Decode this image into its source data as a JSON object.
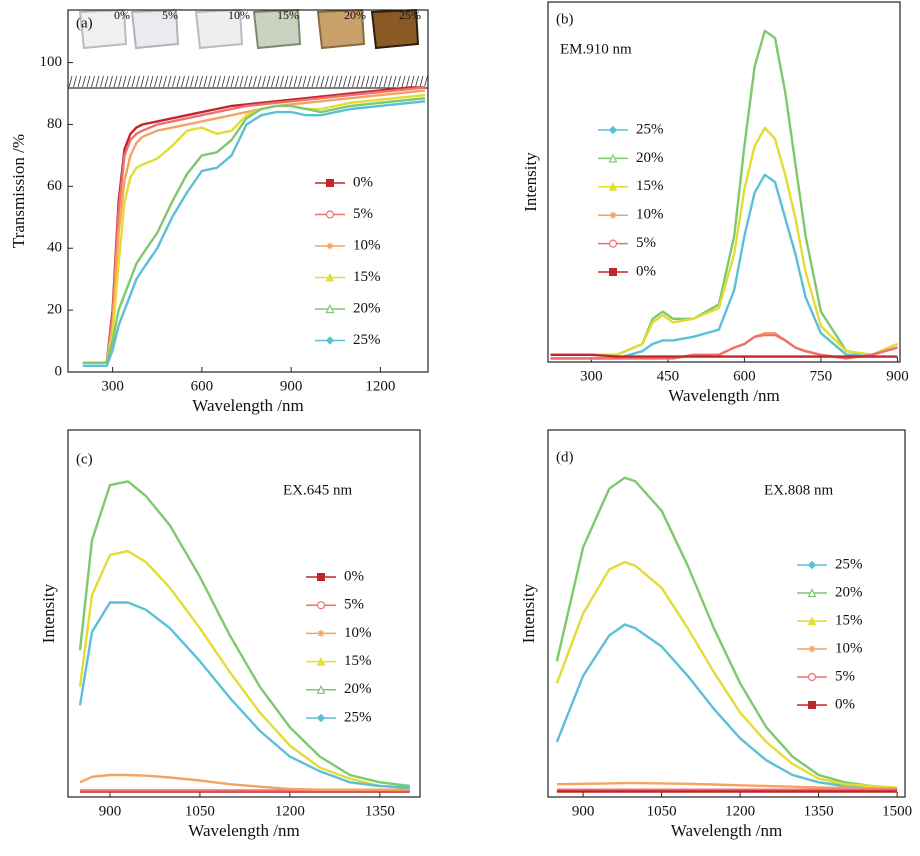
{
  "chart_data": [
    {
      "type": "line",
      "panel_label": "(a)",
      "xlabel": "Wavelength /nm",
      "ylabel": "Transmission /%",
      "xlim": [
        150,
        1360
      ],
      "ylim": [
        0,
        117
      ],
      "xticks": [
        300,
        600,
        900,
        1200
      ],
      "yticks": [
        0,
        20,
        40,
        60,
        80,
        100
      ],
      "inset_labels": [
        {
          "text": "0%",
          "color": "#a8a8a8"
        },
        {
          "text": "5%",
          "color": "#d33a3a"
        },
        {
          "text": "10%",
          "color": "#f07a3a"
        },
        {
          "text": "15%",
          "color": "#e0d23a"
        },
        {
          "text": "20%",
          "color": "#6cbd4a"
        },
        {
          "text": "25%",
          "color": "#55c0d0"
        }
      ],
      "x": [
        200,
        280,
        300,
        320,
        340,
        360,
        380,
        400,
        450,
        500,
        550,
        600,
        650,
        700,
        750,
        800,
        850,
        900,
        950,
        1000,
        1050,
        1100,
        1200,
        1300,
        1350
      ],
      "series": [
        {
          "name": "0%",
          "color": "#c0272d",
          "marker": "square",
          "values": [
            3,
            3,
            20,
            55,
            72,
            77,
            79,
            80,
            81,
            82,
            83,
            84,
            85,
            86,
            86.5,
            87,
            87.5,
            88,
            88.5,
            89,
            89.5,
            90,
            91,
            92,
            92
          ]
        },
        {
          "name": "5%",
          "color": "#ee7070",
          "marker": "circle",
          "values": [
            3,
            3,
            18,
            52,
            70,
            75,
            77,
            78,
            80,
            81,
            82,
            83,
            84,
            85,
            86,
            86.5,
            87,
            87.5,
            88,
            88.5,
            89,
            89.5,
            90.5,
            91.5,
            92
          ]
        },
        {
          "name": "10%",
          "color": "#f4a460",
          "marker": "star",
          "values": [
            3,
            3,
            15,
            45,
            62,
            70,
            74,
            76,
            78,
            79,
            80,
            81,
            82,
            83,
            84,
            85,
            86,
            86.5,
            87,
            87.5,
            88,
            88.5,
            89.5,
            90.5,
            91
          ]
        },
        {
          "name": "15%",
          "color": "#e3dc34",
          "marker": "triangle",
          "values": [
            3,
            3,
            12,
            35,
            55,
            63,
            66,
            67,
            69,
            73,
            78,
            79,
            77,
            78,
            83,
            85,
            86,
            86,
            85,
            85,
            86,
            87,
            88,
            89,
            89.5
          ]
        },
        {
          "name": "20%",
          "color": "#7ec86e",
          "marker": "open-triangle",
          "values": [
            3,
            3,
            10,
            20,
            25,
            30,
            35,
            38,
            45,
            55,
            64,
            70,
            71,
            75,
            82,
            85,
            86,
            86,
            85,
            84,
            85,
            86,
            87,
            88,
            88.5
          ]
        },
        {
          "name": "25%",
          "color": "#5bc0d6",
          "marker": "diamond",
          "values": [
            2,
            2,
            7,
            15,
            20,
            25,
            30,
            33,
            40,
            50,
            58,
            65,
            66,
            70,
            80,
            83,
            84,
            84,
            83,
            83,
            84,
            85,
            86,
            87,
            87.5
          ]
        }
      ]
    },
    {
      "type": "line",
      "panel_label": "(b)",
      "annotation": "EM.910 nm",
      "xlabel": "Wavelength /nm",
      "ylabel": "Intensity",
      "xlim": [
        215,
        905
      ],
      "ylim": [
        0,
        100
      ],
      "xticks": [
        300,
        450,
        600,
        750,
        900
      ],
      "x": [
        220,
        300,
        350,
        400,
        420,
        440,
        460,
        500,
        550,
        580,
        600,
        620,
        640,
        660,
        680,
        700,
        720,
        750,
        800,
        850,
        900
      ],
      "series": [
        {
          "name": "25%",
          "color": "#5bc0d6",
          "marker": "diamond",
          "values": [
            1,
            1,
            1,
            3,
            5,
            6,
            6,
            7,
            9,
            20,
            35,
            47,
            52,
            50,
            40,
            30,
            18,
            8,
            2,
            2,
            4
          ]
        },
        {
          "name": "20%",
          "color": "#7ec86e",
          "marker": "open-triangle",
          "values": [
            2,
            2,
            2,
            5,
            12,
            14,
            12,
            12,
            16,
            35,
            60,
            82,
            92,
            90,
            75,
            55,
            35,
            14,
            3,
            2,
            5
          ]
        },
        {
          "name": "15%",
          "color": "#e3dc34",
          "marker": "triangle",
          "values": [
            2,
            2,
            2,
            5,
            11,
            13,
            11,
            12,
            15,
            30,
            48,
            60,
            65,
            62,
            52,
            40,
            25,
            10,
            3,
            2,
            5
          ]
        },
        {
          "name": "10%",
          "color": "#f4a460",
          "marker": "star",
          "values": [
            1,
            1,
            1,
            1,
            1,
            1,
            1,
            2,
            2,
            4,
            5,
            7,
            8,
            8,
            6,
            4,
            3,
            2,
            1,
            2,
            4
          ]
        },
        {
          "name": "5%",
          "color": "#ee7070",
          "marker": "circle",
          "values": [
            1,
            1,
            1,
            1,
            1,
            1,
            1,
            2,
            2,
            4,
            5,
            7,
            7.5,
            7.5,
            6,
            4,
            3,
            2,
            1,
            2,
            4
          ]
        },
        {
          "name": "0%",
          "color": "#c0272d",
          "marker": "square",
          "values": [
            2,
            2,
            1.5,
            1.5,
            1.5,
            1.5,
            1.5,
            1.5,
            1.5,
            1.5,
            1.5,
            1.5,
            1.5,
            1.5,
            1.5,
            1.5,
            1.5,
            1.5,
            1.5,
            1.5,
            1.5
          ]
        }
      ]
    },
    {
      "type": "line",
      "panel_label": "(c)",
      "annotation": "EX.645 nm",
      "xlabel": "Wavelength /nm",
      "ylabel": "Intensity",
      "xlim": [
        830,
        1417
      ],
      "ylim": [
        0,
        100
      ],
      "xticks": [
        900,
        1050,
        1200,
        1350
      ],
      "x": [
        850,
        870,
        900,
        930,
        960,
        1000,
        1050,
        1100,
        1150,
        1200,
        1250,
        1300,
        1350,
        1400
      ],
      "series": [
        {
          "name": "0%",
          "color": "#c0272d",
          "marker": "square",
          "values": [
            1.5,
            1.5,
            1.5,
            1.5,
            1.5,
            1.5,
            1.5,
            1.5,
            1.5,
            1.5,
            1.5,
            1.5,
            1.5,
            1.5
          ]
        },
        {
          "name": "5%",
          "color": "#ee7070",
          "marker": "circle",
          "values": [
            1.8,
            1.8,
            1.8,
            1.8,
            1.8,
            1.8,
            1.8,
            1.8,
            1.8,
            1.8,
            1.8,
            1.8,
            1.8,
            1.8
          ]
        },
        {
          "name": "10%",
          "color": "#f4a460",
          "marker": "star",
          "values": [
            4,
            5.5,
            6,
            6,
            5.8,
            5.3,
            4.5,
            3.5,
            2.8,
            2.2,
            2,
            2,
            2,
            2
          ]
        },
        {
          "name": "15%",
          "color": "#e3dc34",
          "marker": "triangle",
          "values": [
            30,
            55,
            66,
            67,
            64,
            57,
            46,
            34,
            23,
            14,
            8,
            5,
            3,
            2.5
          ]
        },
        {
          "name": "20%",
          "color": "#7ec86e",
          "marker": "open-triangle",
          "values": [
            40,
            70,
            85,
            86,
            82,
            74,
            60,
            44,
            30,
            19,
            11,
            6,
            4,
            3
          ]
        },
        {
          "name": "25%",
          "color": "#5bc0d6",
          "marker": "diamond",
          "values": [
            25,
            45,
            53,
            53,
            51,
            46,
            37,
            27,
            18,
            11,
            7,
            4,
            3,
            2.5
          ]
        }
      ]
    },
    {
      "type": "line",
      "panel_label": "(d)",
      "annotation": "EX.808 nm",
      "xlabel": "Wavelength /nm",
      "ylabel": "Intensity",
      "xlim": [
        833,
        1515
      ],
      "ylim": [
        0,
        100
      ],
      "xticks": [
        900,
        1050,
        1200,
        1350,
        1500
      ],
      "x": [
        850,
        900,
        950,
        980,
        1000,
        1050,
        1100,
        1150,
        1200,
        1250,
        1300,
        1350,
        1400,
        1450,
        1500
      ],
      "series": [
        {
          "name": "25%",
          "color": "#5bc0d6",
          "marker": "diamond",
          "values": [
            15,
            33,
            44,
            47,
            46,
            41,
            33,
            24,
            16,
            10,
            6,
            4,
            3,
            2.5,
            2.2
          ]
        },
        {
          "name": "20%",
          "color": "#7ec86e",
          "marker": "open-triangle",
          "values": [
            37,
            68,
            84,
            87,
            86,
            78,
            63,
            46,
            31,
            19,
            11,
            6,
            4,
            3,
            2.5
          ]
        },
        {
          "name": "15%",
          "color": "#e3dc34",
          "marker": "triangle",
          "values": [
            31,
            50,
            62,
            64,
            63,
            57,
            46,
            34,
            23,
            15,
            9,
            5,
            3.5,
            3,
            2.5
          ]
        },
        {
          "name": "10%",
          "color": "#f4a460",
          "marker": "star",
          "values": [
            3.5,
            3.6,
            3.7,
            3.8,
            3.8,
            3.7,
            3.6,
            3.4,
            3.2,
            3,
            2.8,
            2.6,
            2.5,
            2.4,
            2.3
          ]
        },
        {
          "name": "5%",
          "color": "#ee7070",
          "marker": "circle",
          "values": [
            2,
            2,
            2,
            2,
            2,
            2,
            2,
            2,
            2,
            2,
            2,
            2,
            2,
            2,
            2
          ]
        },
        {
          "name": "0%",
          "color": "#c0272d",
          "marker": "square",
          "values": [
            1.5,
            1.5,
            1.5,
            1.5,
            1.5,
            1.5,
            1.5,
            1.5,
            1.5,
            1.5,
            1.5,
            1.5,
            1.5,
            1.5,
            1.5
          ]
        }
      ]
    }
  ]
}
